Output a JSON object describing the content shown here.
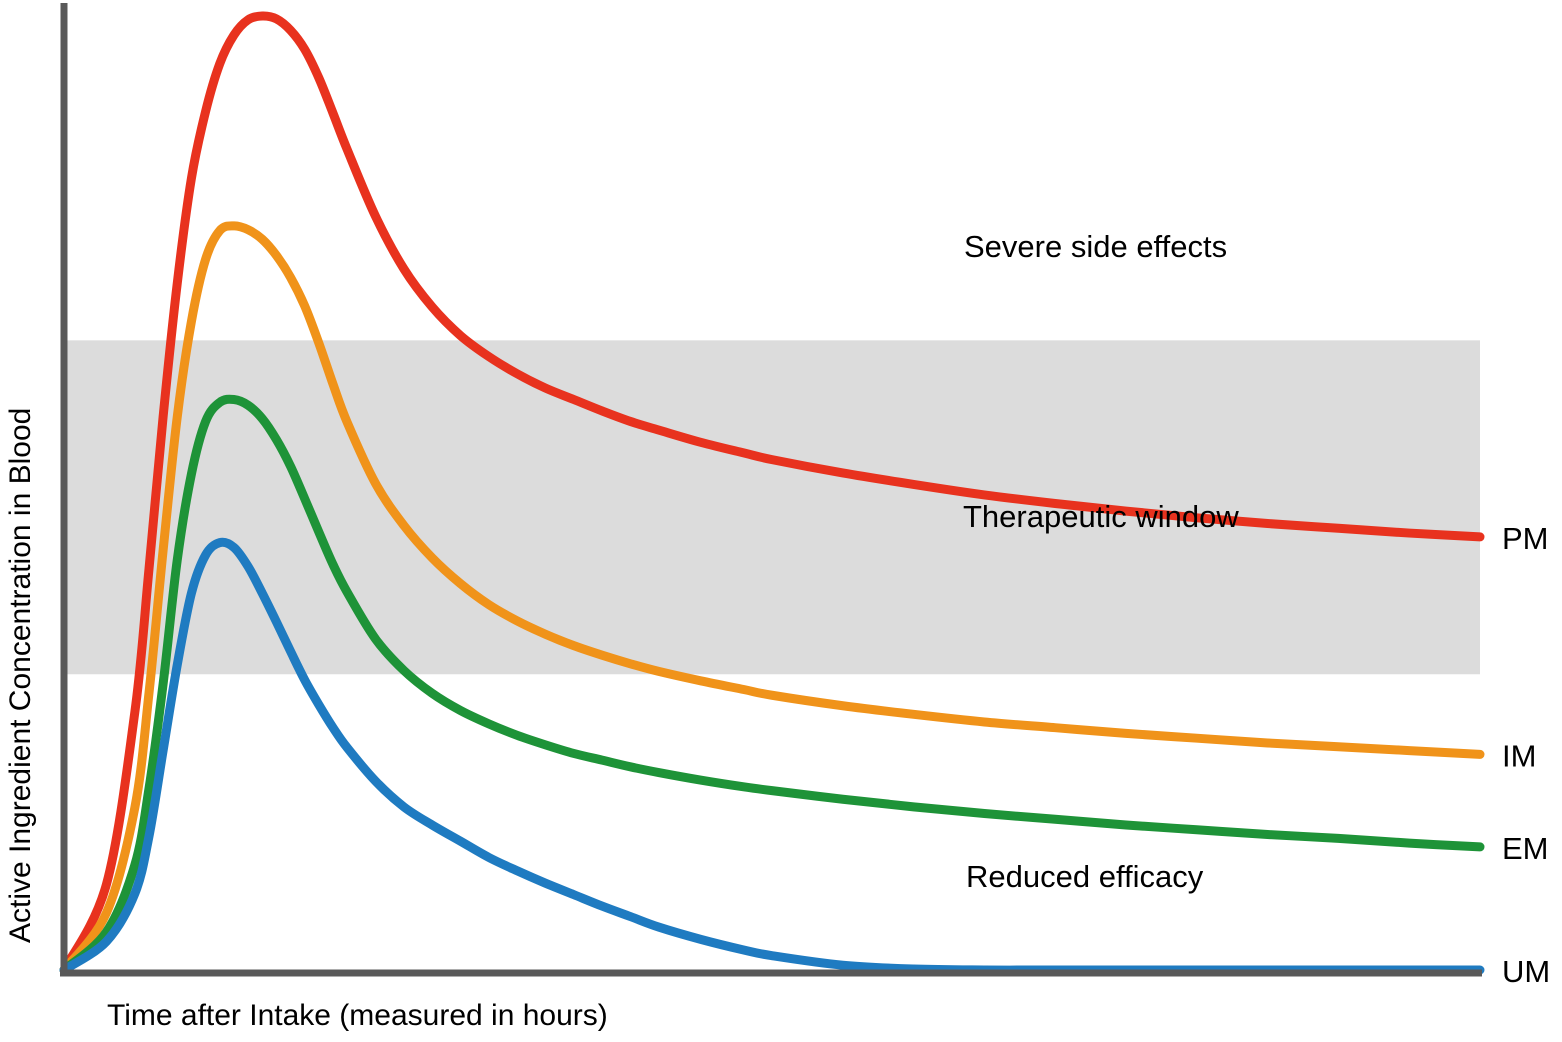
{
  "chart_data": {
    "type": "line",
    "title": "",
    "xlabel": "Time after Intake (measured in hours)",
    "ylabel": "Active Ingredient Concentration in Blood",
    "x_ticks": [],
    "y_ticks": [],
    "grid": false,
    "xlim": [
      0,
      100
    ],
    "ylim": [
      0,
      100
    ],
    "shaded_region": {
      "name": "Therapeutic window",
      "y_range": [
        31,
        66
      ],
      "color": "#dcdcdc"
    },
    "regions": {
      "above": "Severe side effects",
      "inside": "Therapeutic window",
      "below": "Reduced efficacy"
    },
    "series": [
      {
        "name": "PM",
        "color": "#e8321e",
        "x": [
          0,
          3,
          5,
          6,
          7,
          8,
          9,
          10,
          11,
          12,
          13,
          14,
          15,
          16,
          17,
          18,
          19,
          20,
          22,
          24,
          26,
          28,
          30,
          32,
          34,
          36,
          38,
          40,
          42,
          45,
          48,
          50,
          55,
          60,
          65,
          70,
          75,
          80,
          85,
          90,
          95,
          100
        ],
        "y": [
          0,
          9,
          27,
          42,
          58,
          72,
          83,
          90,
          95,
          98,
          99.6,
          100,
          99.7,
          98.5,
          96.5,
          93.5,
          89.8,
          86,
          79,
          73.5,
          69.5,
          66.5,
          64.3,
          62.5,
          61,
          59.8,
          58.6,
          57.5,
          56.6,
          55.3,
          54.2,
          53.5,
          52.1,
          50.9,
          49.8,
          48.9,
          48.1,
          47.4,
          46.8,
          46.3,
          45.8,
          45.4
        ]
      },
      {
        "name": "IM",
        "color": "#f0931a",
        "x": [
          0,
          3,
          5,
          6,
          7,
          8,
          9,
          10,
          11,
          12,
          13,
          14,
          15,
          16,
          17,
          18,
          19,
          20,
          22,
          24,
          26,
          28,
          30,
          32,
          34,
          36,
          38,
          40,
          42,
          45,
          48,
          50,
          55,
          60,
          65,
          70,
          75,
          80,
          85,
          90,
          95,
          100
        ],
        "y": [
          0,
          6,
          17,
          29,
          44,
          58,
          68,
          74.5,
          77.5,
          78,
          77.6,
          76.6,
          74.9,
          72.6,
          69.6,
          65.7,
          61.4,
          57.4,
          51,
          46.6,
          43.2,
          40.5,
          38.3,
          36.6,
          35.2,
          34,
          33,
          32.1,
          31.3,
          30.3,
          29.4,
          28.8,
          27.7,
          26.8,
          26,
          25.4,
          24.8,
          24.3,
          23.8,
          23.4,
          23,
          22.6
        ]
      },
      {
        "name": "EM",
        "color": "#1e9338",
        "x": [
          0,
          3,
          5,
          6,
          7,
          8,
          9,
          10,
          11,
          12,
          13,
          14,
          15,
          16,
          17,
          18,
          19,
          20,
          22,
          24,
          26,
          28,
          30,
          32,
          34,
          36,
          38,
          40,
          42,
          45,
          48,
          50,
          55,
          60,
          65,
          70,
          75,
          80,
          85,
          90,
          95,
          100
        ],
        "y": [
          0,
          4,
          11,
          19,
          30,
          43,
          52,
          57.5,
          59.5,
          59.8,
          59.2,
          57.8,
          55.6,
          52.8,
          49.4,
          45.9,
          42.5,
          39.6,
          34.7,
          31.4,
          29,
          27.2,
          25.8,
          24.6,
          23.6,
          22.7,
          22,
          21.3,
          20.7,
          19.9,
          19.2,
          18.8,
          17.9,
          17.1,
          16.4,
          15.8,
          15.2,
          14.7,
          14.2,
          13.8,
          13.3,
          12.9
        ]
      },
      {
        "name": "UM",
        "color": "#1f7bc1",
        "x": [
          0,
          3,
          5,
          6,
          7,
          8,
          9,
          10,
          11,
          12,
          13,
          14,
          15,
          16,
          17,
          18,
          19,
          20,
          22,
          24,
          26,
          28,
          30,
          32,
          34,
          36,
          38,
          40,
          42,
          45,
          48,
          50,
          55,
          60,
          65,
          70,
          72,
          75,
          80,
          85,
          90,
          95,
          100
        ],
        "y": [
          0,
          3,
          8,
          14,
          23,
          32,
          39.5,
          43.5,
          44.8,
          44.3,
          42.3,
          39.5,
          36.5,
          33.4,
          30.4,
          27.8,
          25.4,
          23.3,
          19.8,
          17.1,
          15.2,
          13.5,
          11.8,
          10.4,
          9.1,
          7.9,
          6.7,
          5.6,
          4.5,
          3.2,
          2.1,
          1.5,
          0.5,
          0.1,
          0,
          0,
          0,
          0,
          0,
          0,
          0,
          0,
          0
        ]
      }
    ]
  }
}
